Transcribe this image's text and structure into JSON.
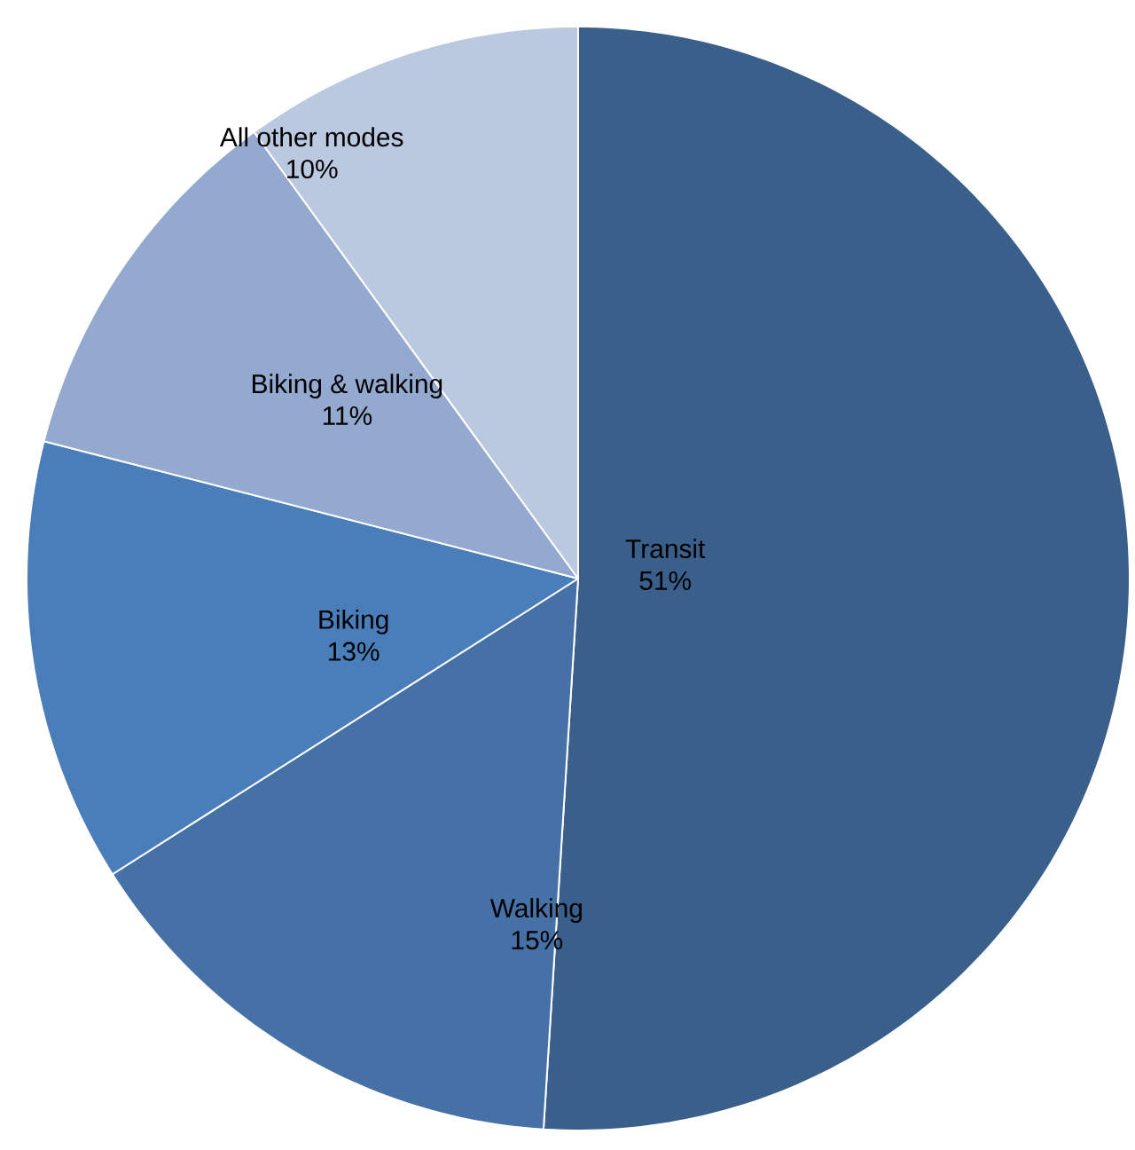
{
  "chart_data": {
    "type": "pie",
    "categories": [
      "Transit",
      "Walking",
      "Biking",
      "Biking & walking",
      "All other modes"
    ],
    "values": [
      51,
      15,
      13,
      11,
      10
    ],
    "value_labels": [
      "51%",
      "15%",
      "13%",
      "11%",
      "10%"
    ],
    "colors": [
      "#3A5F8B",
      "#4571A6",
      "#4A7EBB",
      "#93A9CF",
      "#BAC8E0"
    ]
  }
}
